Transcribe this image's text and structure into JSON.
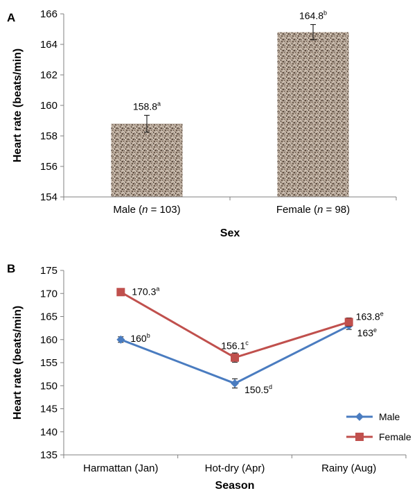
{
  "chart_data": [
    {
      "panel_label": "A",
      "type": "bar",
      "categories": [
        {
          "pre": "Male (",
          "n_sym": "n",
          "post": " = 103)"
        },
        {
          "pre": "Female (",
          "n_sym": "n",
          "post": " = 98)"
        }
      ],
      "values": [
        158.8,
        164.8
      ],
      "errors": [
        0.55,
        0.5
      ],
      "data_labels": [
        {
          "value": "158.8",
          "sup": "a"
        },
        {
          "value": "164.8",
          "sup": "b"
        }
      ],
      "xlabel": "Sex",
      "ylabel": "Heart rate (beats/min)",
      "ylim": [
        154,
        166
      ],
      "yticks": [
        154,
        156,
        158,
        160,
        162,
        164,
        166
      ],
      "bar_fill": "textured-gray-brown",
      "grid": false
    },
    {
      "panel_label": "B",
      "type": "line",
      "categories": [
        "Harmattan (Jan)",
        "Hot-dry (Apr)",
        "Rainy (Aug)"
      ],
      "series": [
        {
          "name": "Male",
          "values": [
            160,
            150.5,
            163
          ],
          "errors": [
            0.6,
            1.0,
            0.8
          ],
          "color": "#4a7cc0",
          "marker": "diamond",
          "data_labels": [
            {
              "value": "160",
              "sup": "b"
            },
            {
              "value": "150.5",
              "sup": "d"
            },
            {
              "value": "163",
              "sup": "e"
            }
          ]
        },
        {
          "name": "Female",
          "values": [
            170.3,
            156.1,
            163.8
          ],
          "errors": [
            0.5,
            1.0,
            0.9
          ],
          "color": "#c0504d",
          "marker": "square",
          "data_labels": [
            {
              "value": "170.3",
              "sup": "a"
            },
            {
              "value": "156.1",
              "sup": "c"
            },
            {
              "value": "163.8",
              "sup": "e"
            }
          ]
        }
      ],
      "xlabel": "Season",
      "ylabel": "Heart rate (beats/min)",
      "ylim": [
        135,
        175
      ],
      "yticks": [
        135,
        140,
        145,
        150,
        155,
        160,
        165,
        170,
        175
      ],
      "legend_position": "bottom-right",
      "grid": false
    }
  ]
}
